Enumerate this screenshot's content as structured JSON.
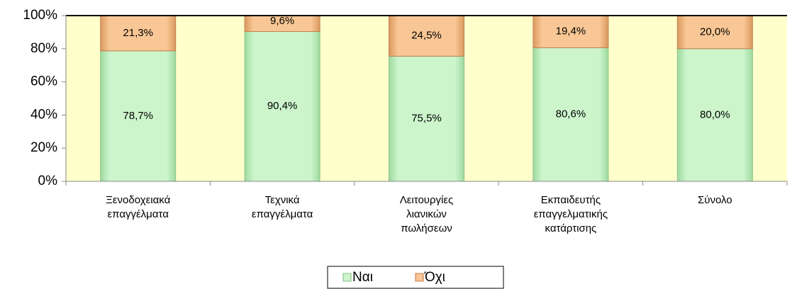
{
  "chart_data": {
    "type": "stacked_bar",
    "categories": [
      [
        "Ξενοδοχειακά",
        "επαγγέλματα"
      ],
      [
        "Τεχνικά",
        "επαγγέλματα"
      ],
      [
        "Λειτουργίες",
        "λιανικών",
        "πωλήσεων"
      ],
      [
        "Εκπαιδευτής",
        "επαγγελματικής",
        "κατάρτισης"
      ],
      [
        "Σύνολο"
      ]
    ],
    "series": [
      {
        "name": "Ναι",
        "color": "#ccf5cc",
        "values": [
          78.7,
          90.4,
          75.5,
          80.6,
          80.0
        ],
        "value_labels": [
          "78,7%",
          "90,4%",
          "75,5%",
          "80,6%",
          "80,0%"
        ]
      },
      {
        "name": "Όχι",
        "color": "#f9c795",
        "values": [
          21.3,
          9.6,
          24.5,
          19.4,
          20.0
        ],
        "value_labels": [
          "21,3%",
          "9,6%",
          "24,5%",
          "19,4%",
          "20,0%"
        ]
      }
    ],
    "ylim": [
      0,
      100
    ],
    "yticks": [
      {
        "value": 0,
        "label": "0%"
      },
      {
        "value": 20,
        "label": "20%"
      },
      {
        "value": 40,
        "label": "40%"
      },
      {
        "value": 60,
        "label": "60%"
      },
      {
        "value": 80,
        "label": "80%"
      },
      {
        "value": 100,
        "label": "100%"
      }
    ],
    "plot_background": "#ffffcc",
    "legend": "bottom"
  }
}
